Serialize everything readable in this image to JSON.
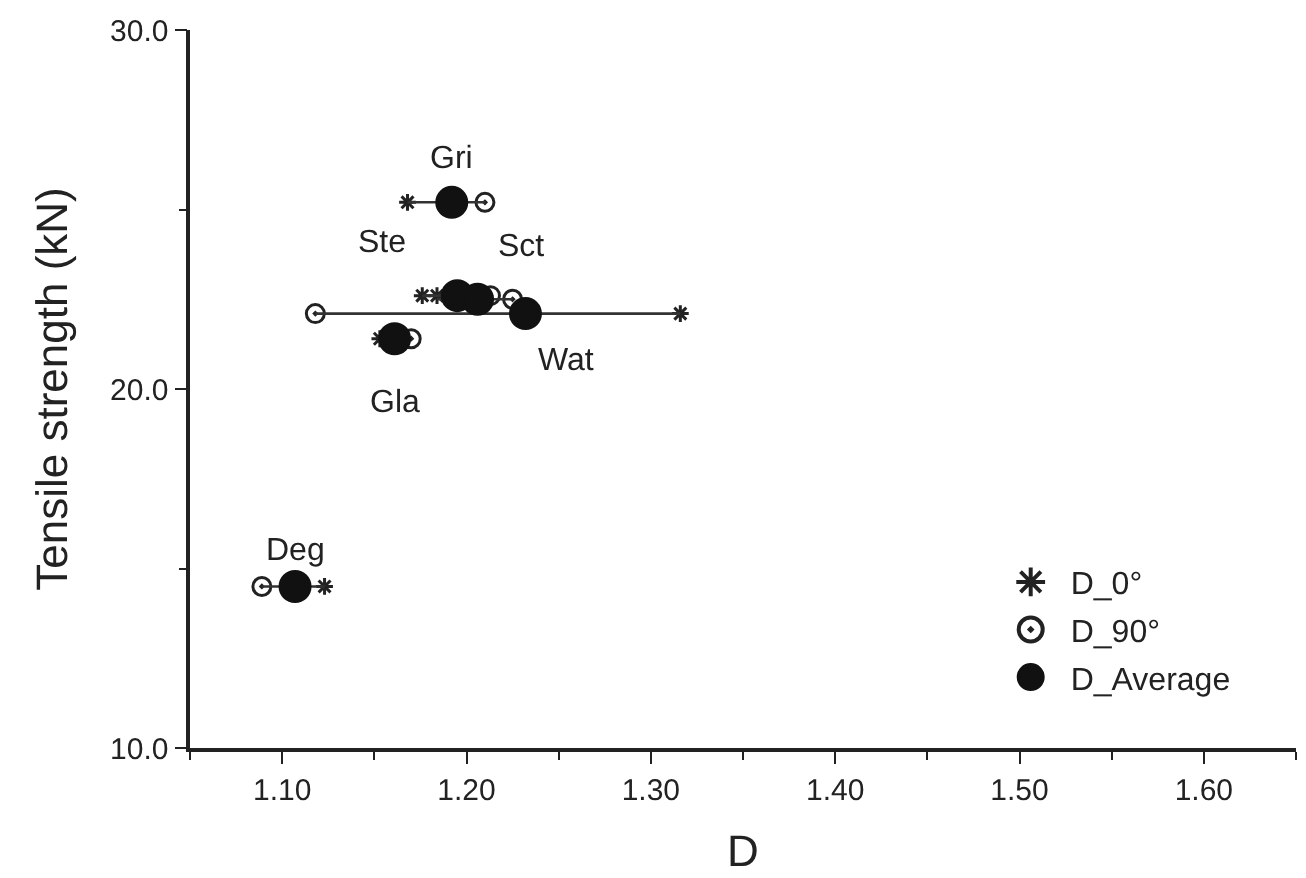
{
  "chart_data": {
    "type": "scatter",
    "xlabel": "D",
    "ylabel": "Tensile strength (kN)",
    "xlim": [
      1.05,
      1.65
    ],
    "xticks": [
      {
        "value": 1.1,
        "label": "1.10"
      },
      {
        "value": 1.2,
        "label": "1.20"
      },
      {
        "value": 1.3,
        "label": "1.30"
      },
      {
        "value": 1.4,
        "label": "1.40"
      },
      {
        "value": 1.5,
        "label": "1.50"
      },
      {
        "value": 1.6,
        "label": "1.60"
      }
    ],
    "ylim": [
      10,
      30
    ],
    "yticks": [
      {
        "value": 10,
        "label": "10.0"
      },
      {
        "value": 20,
        "label": "20.0"
      },
      {
        "value": 30,
        "label": "30.0"
      }
    ],
    "legend": "bottom right",
    "series": [
      {
        "name": "D_0°",
        "color": "#222222",
        "marker": "cross",
        "x": [
          1.168,
          1.176,
          1.184,
          1.316,
          1.153,
          1.123
        ],
        "values": [
          25.2,
          22.6,
          22.6,
          22.1,
          21.4,
          14.5
        ]
      },
      {
        "name": "D_90°",
        "color": "#222222",
        "marker": "circle",
        "x": [
          1.21,
          1.213,
          1.225,
          1.118,
          1.17,
          1.089
        ],
        "values": [
          25.2,
          22.6,
          22.5,
          22.1,
          21.4,
          14.5
        ]
      },
      {
        "name": "D_Average",
        "color": "#111111",
        "marker": "circle",
        "x": [
          1.192,
          1.195,
          1.206,
          1.232,
          1.161,
          1.107
        ],
        "values": [
          25.2,
          22.6,
          22.5,
          22.1,
          21.4,
          14.5
        ],
        "xerrors": [
          [
            1.168,
            1.21
          ],
          [
            1.176,
            1.213
          ],
          [
            1.184,
            1.225
          ],
          [
            1.118,
            1.316
          ],
          [
            1.153,
            1.17
          ],
          [
            1.089,
            1.123
          ]
        ]
      }
    ],
    "annotations": [
      {
        "text": "Gri",
        "x": 1.192,
        "y": 25.2
      },
      {
        "text": "Ste",
        "x": 1.195,
        "y": 22.6
      },
      {
        "text": "Sct",
        "x": 1.206,
        "y": 22.5
      },
      {
        "text": "Wat",
        "x": 1.232,
        "y": 22.1
      },
      {
        "text": "Gla",
        "x": 1.161,
        "y": 21.4
      },
      {
        "text": "Deg",
        "x": 1.107,
        "y": 14.5
      }
    ]
  }
}
